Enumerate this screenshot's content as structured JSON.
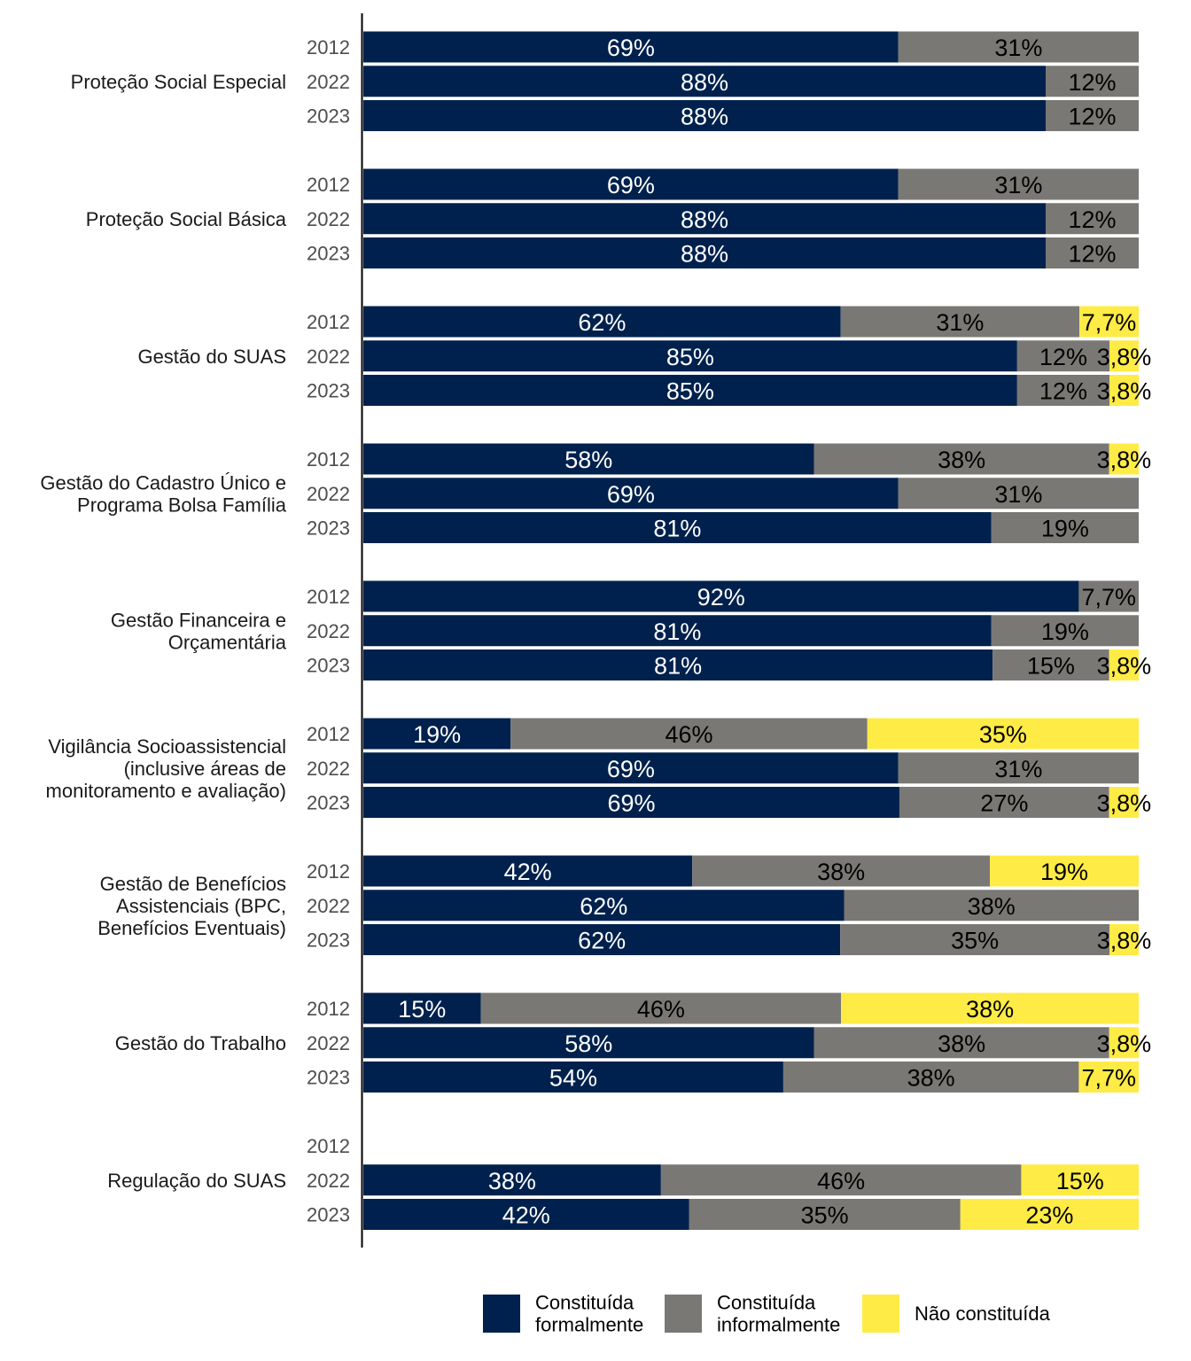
{
  "chart_data": {
    "type": "bar",
    "orientation": "horizontal",
    "stacked": true,
    "percent": true,
    "colors": {
      "formal": "#00214d",
      "informal": "#7a7875",
      "none": "#ffeb45"
    },
    "legend": {
      "placement": "bottom",
      "items": [
        {
          "key": "formal",
          "lines": [
            "Constituída",
            "formalmente"
          ]
        },
        {
          "key": "informal",
          "lines": [
            "Constituída",
            "informalmente"
          ]
        },
        {
          "key": "none",
          "lines": [
            "Não constituída"
          ]
        }
      ]
    },
    "years": [
      "2012",
      "2022",
      "2023"
    ],
    "groups": [
      {
        "label": [
          "Proteção Social Especial"
        ],
        "rows": [
          [
            69,
            31,
            0
          ],
          [
            88,
            12,
            0
          ],
          [
            88,
            12,
            0
          ]
        ]
      },
      {
        "label": [
          "Proteção Social Básica"
        ],
        "rows": [
          [
            69,
            31,
            0
          ],
          [
            88,
            12,
            0
          ],
          [
            88,
            12,
            0
          ]
        ]
      },
      {
        "label": [
          "Gestão do SUAS"
        ],
        "rows": [
          [
            62,
            31,
            7.7
          ],
          [
            85,
            12,
            3.8
          ],
          [
            85,
            12,
            3.8
          ]
        ]
      },
      {
        "label": [
          "Gestão do Cadastro Único e",
          "Programa Bolsa Família"
        ],
        "rows": [
          [
            58,
            38,
            3.8
          ],
          [
            69,
            31,
            0
          ],
          [
            81,
            19,
            0
          ]
        ]
      },
      {
        "label": [
          "Gestão Financeira e",
          "Orçamentária"
        ],
        "rows": [
          [
            92,
            7.7,
            0
          ],
          [
            81,
            19,
            0
          ],
          [
            81,
            15,
            3.8
          ]
        ]
      },
      {
        "label": [
          "Vigilância Socioassistencial",
          "(inclusive áreas de",
          "monitoramento e avaliação)"
        ],
        "rows": [
          [
            19,
            46,
            35
          ],
          [
            69,
            31,
            0
          ],
          [
            69,
            27,
            3.8
          ]
        ]
      },
      {
        "label": [
          "Gestão de Benefícios",
          "Assistenciais (BPC,",
          "Benefícios Eventuais)"
        ],
        "rows": [
          [
            42,
            38,
            19
          ],
          [
            62,
            38,
            0
          ],
          [
            62,
            35,
            3.8
          ]
        ]
      },
      {
        "label": [
          "Gestão do Trabalho"
        ],
        "rows": [
          [
            15,
            46,
            38
          ],
          [
            58,
            38,
            3.8
          ],
          [
            54,
            38,
            7.7
          ]
        ]
      },
      {
        "label": [
          "Regulação do SUAS"
        ],
        "rows": [
          null,
          [
            38,
            46,
            15
          ],
          [
            42,
            35,
            23
          ]
        ]
      }
    ]
  }
}
